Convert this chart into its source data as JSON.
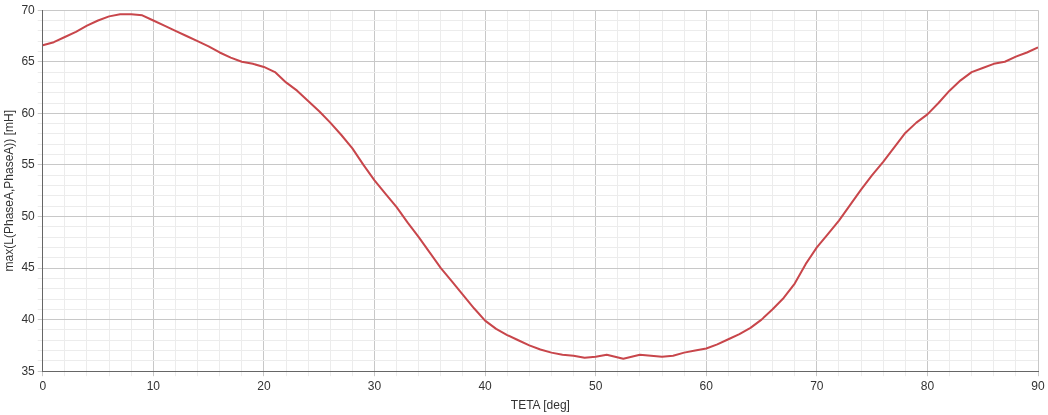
{
  "chart_data": {
    "type": "line",
    "xlabel": "TETA [deg]",
    "ylabel": "max(L(PhaseA,PhaseA)) [mH]",
    "xlim": [
      0,
      90
    ],
    "ylim": [
      35,
      70
    ],
    "xticks": [
      0,
      10,
      20,
      30,
      40,
      50,
      60,
      70,
      80,
      90
    ],
    "yticks": [
      35,
      40,
      45,
      50,
      55,
      60,
      65,
      70
    ],
    "grid": true,
    "legend": false,
    "marker": "none",
    "line_style": "solid",
    "series": [
      {
        "color": "#c8464b",
        "x": [
          0,
          1,
          2,
          3,
          4,
          5,
          6,
          7,
          8,
          9,
          10,
          11,
          12,
          13,
          14,
          15,
          16,
          17,
          18,
          19,
          20,
          21,
          22,
          23,
          24,
          25,
          26,
          27,
          28,
          29,
          30,
          31,
          32,
          33,
          34,
          35,
          36,
          37,
          38,
          39,
          40,
          41,
          42,
          43,
          44,
          45,
          46,
          47,
          48,
          49,
          50,
          51,
          52.5,
          54,
          55,
          56,
          57,
          58,
          59,
          60,
          61,
          62,
          63,
          64,
          65,
          66,
          67,
          68,
          69,
          70,
          71,
          72,
          73,
          74,
          75,
          76,
          77,
          78,
          79,
          80,
          81,
          82,
          83,
          84,
          85,
          86,
          87,
          88,
          89,
          90
        ],
        "values": [
          66.6,
          66.9,
          67.4,
          67.9,
          68.5,
          69.0,
          69.4,
          69.6,
          69.6,
          69.5,
          69.0,
          68.5,
          68.0,
          67.5,
          67.0,
          66.5,
          65.9,
          65.4,
          65.0,
          64.8,
          64.5,
          64.0,
          63.0,
          62.2,
          61.2,
          60.2,
          59.1,
          57.9,
          56.6,
          55.0,
          53.5,
          52.2,
          50.9,
          49.4,
          48.0,
          46.5,
          45.0,
          43.7,
          42.4,
          41.1,
          39.9,
          39.1,
          38.5,
          38.0,
          37.5,
          37.1,
          36.8,
          36.6,
          36.5,
          36.3,
          36.4,
          36.6,
          36.2,
          36.6,
          36.5,
          36.4,
          36.5,
          36.8,
          37.0,
          37.2,
          37.6,
          38.1,
          38.6,
          39.2,
          40.0,
          41.0,
          42.1,
          43.5,
          45.4,
          47.0,
          48.3,
          49.6,
          51.1,
          52.6,
          54.0,
          55.3,
          56.7,
          58.1,
          59.1,
          59.9,
          61.0,
          62.2,
          63.2,
          64.0,
          64.4,
          64.8,
          65.0,
          65.5,
          65.9,
          66.4
        ]
      }
    ]
  }
}
